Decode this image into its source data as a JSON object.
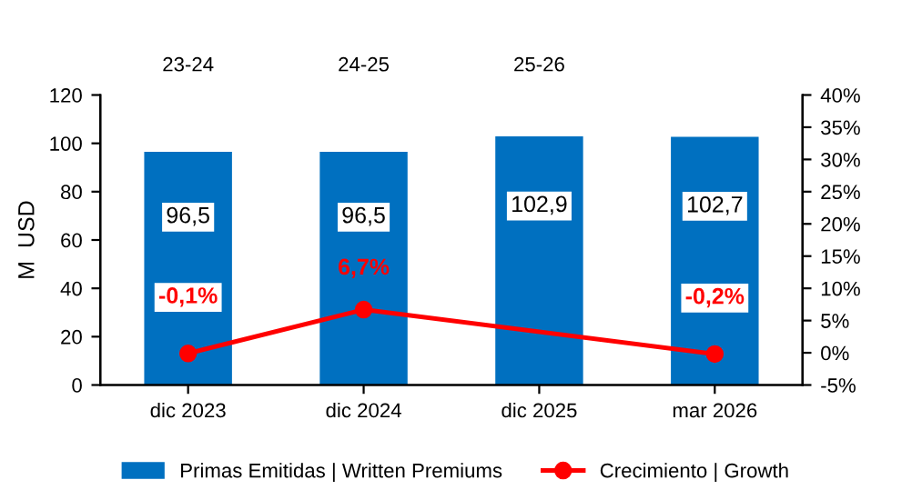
{
  "chart_data": {
    "type": "bar",
    "categories": [
      "dic 2023",
      "dic 2024",
      "dic 2025",
      "mar 2026"
    ],
    "ylabel": "M  USD",
    "ylim": [
      0,
      120
    ],
    "yticks": [
      0,
      20,
      40,
      60,
      80,
      100,
      120
    ],
    "y2lim": [
      -5,
      40
    ],
    "y2ticks": [
      {
        "value": -5,
        "label": "-5%"
      },
      {
        "value": 0,
        "label": "0%"
      },
      {
        "value": 5,
        "label": "5%"
      },
      {
        "value": 10,
        "label": "10%"
      },
      {
        "value": 15,
        "label": "15%"
      },
      {
        "value": 20,
        "label": "20%"
      },
      {
        "value": 25,
        "label": "25%"
      },
      {
        "value": 30,
        "label": "30%"
      },
      {
        "value": 35,
        "label": "35%"
      },
      {
        "value": 40,
        "label": "40%"
      }
    ],
    "series": [
      {
        "name": "Primas Emitidas | Written Premiums",
        "color": "#0070c0",
        "values": [
          96.5,
          96.5,
          102.9,
          102.7
        ],
        "value_labels": [
          "96,5",
          "96,5",
          "102,9",
          "102,7"
        ]
      },
      {
        "name": "Crecimiento | Growth",
        "type": "line",
        "axis": "y2",
        "color": "#ff0000",
        "marker": "circle",
        "values": [
          -0.1,
          6.7,
          null,
          -0.2
        ],
        "value_labels": [
          "-0,1%",
          "6,7%",
          null,
          "-0,2%"
        ]
      }
    ],
    "annotations": [
      "23-24",
      "24-25",
      "25-26"
    ],
    "legend": "bottom",
    "grid": false
  }
}
